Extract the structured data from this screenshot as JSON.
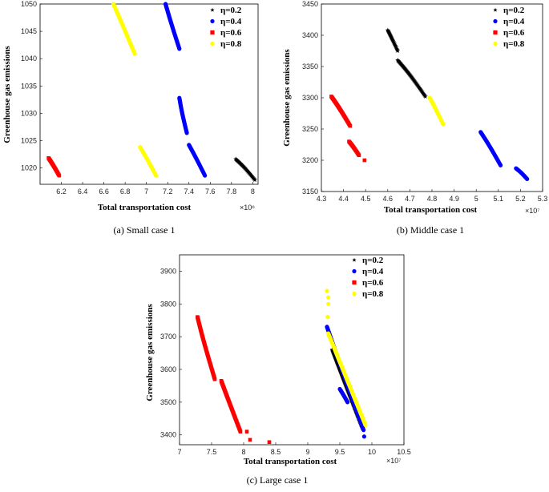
{
  "chart_data": [
    {
      "type": "scatter",
      "id": "small",
      "caption": "(a)  Small case 1",
      "xlabel": "Total transportation cost",
      "ylabel": "Greenhouse gas emissions",
      "x_multiplier": "×10⁶",
      "xlim": [
        6.0,
        8.05
      ],
      "ylim": [
        1017,
        1050
      ],
      "xticks": [
        6.2,
        6.4,
        6.6,
        6.8,
        7.0,
        7.2,
        7.4,
        7.6,
        7.8,
        8.0
      ],
      "xtick_labels": [
        "6.2",
        "6.4",
        "6.6",
        "6.8",
        "7",
        "7.2",
        "7.4",
        "7.6",
        "7.8",
        "8"
      ],
      "yticks": [
        1020,
        1025,
        1030,
        1035,
        1040,
        1045,
        1050
      ],
      "ytick_labels": [
        "1020",
        "1025",
        "1030",
        "1035",
        "1040",
        "1045",
        "1050"
      ],
      "legend": [
        "η=0.2",
        "η=0.4",
        "η=0.6",
        "η=0.8"
      ],
      "series": [
        {
          "name": "η=0.2",
          "marker": "star",
          "color": "#000000",
          "segments": [
            {
              "x0": 7.84,
              "y0": 1021.6,
              "x1": 8.02,
              "y1": 1017.8
            }
          ]
        },
        {
          "name": "η=0.4",
          "marker": "circle",
          "color": "#0000ff",
          "segments": [
            {
              "x0": 7.18,
              "y0": 1050.0,
              "x1": 7.31,
              "y1": 1041.8
            },
            {
              "x0": 7.31,
              "y0": 1032.8,
              "x1": 7.38,
              "y1": 1026.4
            },
            {
              "x0": 7.4,
              "y0": 1024.2,
              "x1": 7.55,
              "y1": 1018.6
            }
          ]
        },
        {
          "name": "η=0.6",
          "marker": "square",
          "color": "#ff0000",
          "segments": [
            {
              "x0": 6.08,
              "y0": 1021.8,
              "x1": 6.18,
              "y1": 1018.6
            }
          ]
        },
        {
          "name": "η=0.8",
          "marker": "circle",
          "color": "#ffff00",
          "segments": [
            {
              "x0": 6.69,
              "y0": 1050.0,
              "x1": 6.89,
              "y1": 1040.9
            },
            {
              "x0": 6.94,
              "y0": 1023.8,
              "x1": 7.09,
              "y1": 1018.6
            }
          ]
        }
      ]
    },
    {
      "type": "scatter",
      "id": "middle",
      "caption": "(b)  Middle case 1",
      "xlabel": "Total transportation cost",
      "ylabel": "Greenhouse gas emissions",
      "x_multiplier": "×10⁷",
      "xlim": [
        4.3,
        5.3
      ],
      "ylim": [
        3150,
        3450
      ],
      "xticks": [
        4.3,
        4.4,
        4.5,
        4.6,
        4.7,
        4.8,
        4.9,
        5.0,
        5.1,
        5.2,
        5.3
      ],
      "xtick_labels": [
        "4.3",
        "4.4",
        "4.5",
        "4.6",
        "4.7",
        "4.8",
        "4.9",
        "5",
        "5.1",
        "5.2",
        "5.3"
      ],
      "yticks": [
        3150,
        3200,
        3250,
        3300,
        3350,
        3400,
        3450
      ],
      "ytick_labels": [
        "3150",
        "3200",
        "3250",
        "3300",
        "3350",
        "3400",
        "3450"
      ],
      "legend": [
        "η=0.2",
        "η=0.4",
        "η=0.6",
        "η=0.8"
      ],
      "series": [
        {
          "name": "η=0.2",
          "marker": "star",
          "color": "#000000",
          "segments": [
            {
              "x0": 4.6,
              "y0": 3408,
              "x1": 4.645,
              "y1": 3375
            },
            {
              "x0": 4.645,
              "y0": 3360,
              "x1": 4.77,
              "y1": 3302
            }
          ]
        },
        {
          "name": "η=0.4",
          "marker": "circle",
          "color": "#0000ff",
          "segments": [
            {
              "x0": 5.02,
              "y0": 3245,
              "x1": 5.11,
              "y1": 3192
            },
            {
              "x0": 5.18,
              "y0": 3187,
              "x1": 5.23,
              "y1": 3170
            }
          ]
        },
        {
          "name": "η=0.6",
          "marker": "square",
          "color": "#ff0000",
          "segments": [
            {
              "x0": 4.345,
              "y0": 3302,
              "x1": 4.43,
              "y1": 3255
            },
            {
              "x0": 4.425,
              "y0": 3230,
              "x1": 4.47,
              "y1": 3208
            }
          ],
          "points": [
            [
              4.495,
              3200
            ]
          ]
        },
        {
          "name": "η=0.8",
          "marker": "circle",
          "color": "#ffff00",
          "segments": [
            {
              "x0": 4.79,
              "y0": 3300,
              "x1": 4.85,
              "y1": 3258
            }
          ]
        }
      ]
    },
    {
      "type": "scatter",
      "id": "large",
      "caption": "(c)  Large case 1",
      "xlabel": "Total transportation cost",
      "ylabel": "Greenhouse gas emissions",
      "x_multiplier": "×10⁷",
      "xlim": [
        7.0,
        10.5
      ],
      "ylim": [
        3370,
        3950
      ],
      "xticks": [
        7.0,
        7.5,
        8.0,
        8.5,
        9.0,
        9.5,
        10.0,
        10.5
      ],
      "xtick_labels": [
        "7",
        "7.5",
        "8",
        "8.5",
        "9",
        "9.5",
        "10",
        "10.5"
      ],
      "yticks": [
        3400,
        3500,
        3600,
        3700,
        3800,
        3900
      ],
      "ytick_labels": [
        "3400",
        "3500",
        "3600",
        "3700",
        "3800",
        "3900"
      ],
      "legend": [
        "η=0.2",
        "η=0.4",
        "η=0.6",
        "η=0.8"
      ],
      "series": [
        {
          "name": "η=0.2",
          "marker": "star",
          "color": "#000000",
          "segments": [
            {
              "x0": 9.38,
              "y0": 3660,
              "x1": 9.85,
              "y1": 3420
            }
          ]
        },
        {
          "name": "η=0.4",
          "marker": "circle",
          "color": "#0000ff",
          "segments": [
            {
              "x0": 9.3,
              "y0": 3730,
              "x1": 9.87,
              "y1": 3415
            },
            {
              "x0": 9.5,
              "y0": 3540,
              "x1": 9.62,
              "y1": 3500
            }
          ],
          "points": [
            [
              9.88,
              3395
            ]
          ]
        },
        {
          "name": "η=0.6",
          "marker": "square",
          "color": "#ff0000",
          "segments": [
            {
              "x0": 7.28,
              "y0": 3760,
              "x1": 7.55,
              "y1": 3570
            },
            {
              "x0": 7.65,
              "y0": 3565,
              "x1": 7.95,
              "y1": 3410
            }
          ],
          "points": [
            [
              8.05,
              3410
            ],
            [
              8.1,
              3385
            ],
            [
              8.4,
              3378
            ]
          ]
        },
        {
          "name": "η=0.8",
          "marker": "circle",
          "color": "#ffff00",
          "segments": [
            {
              "x0": 9.32,
              "y0": 3710,
              "x1": 9.9,
              "y1": 3430
            }
          ],
          "points": [
            [
              9.3,
              3840
            ],
            [
              9.32,
              3820
            ],
            [
              9.32,
              3800
            ],
            [
              9.31,
              3760
            ]
          ]
        }
      ]
    }
  ]
}
